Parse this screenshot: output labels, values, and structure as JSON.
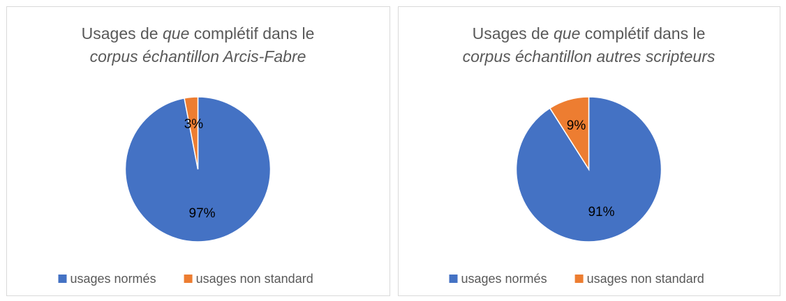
{
  "chart_data": [
    {
      "type": "pie",
      "title": [
        [
          {
            "text": "Usages de ",
            "style": "normal"
          },
          {
            "text": "que",
            "style": "italic"
          },
          {
            "text": " complétif dans le",
            "style": "normal"
          }
        ],
        [
          {
            "text": "corpus échantillon Arcis-Fabre",
            "style": "italic"
          }
        ]
      ],
      "categories": [
        "usages normés",
        "usages non standard"
      ],
      "values": [
        97,
        3
      ],
      "value_labels": [
        "97%",
        "3%"
      ],
      "colors": [
        "#4472c4",
        "#ed7d31"
      ]
    },
    {
      "type": "pie",
      "title": [
        [
          {
            "text": "Usages de ",
            "style": "normal"
          },
          {
            "text": "que",
            "style": "italic"
          },
          {
            "text": " complétif dans le",
            "style": "normal"
          }
        ],
        [
          {
            "text": "corpus échantillon autres scripteurs",
            "style": "italic"
          }
        ]
      ],
      "categories": [
        "usages normés",
        "usages non standard"
      ],
      "values": [
        91,
        9
      ],
      "value_labels": [
        "91%",
        "9%"
      ],
      "colors": [
        "#4472c4",
        "#ed7d31"
      ]
    }
  ]
}
